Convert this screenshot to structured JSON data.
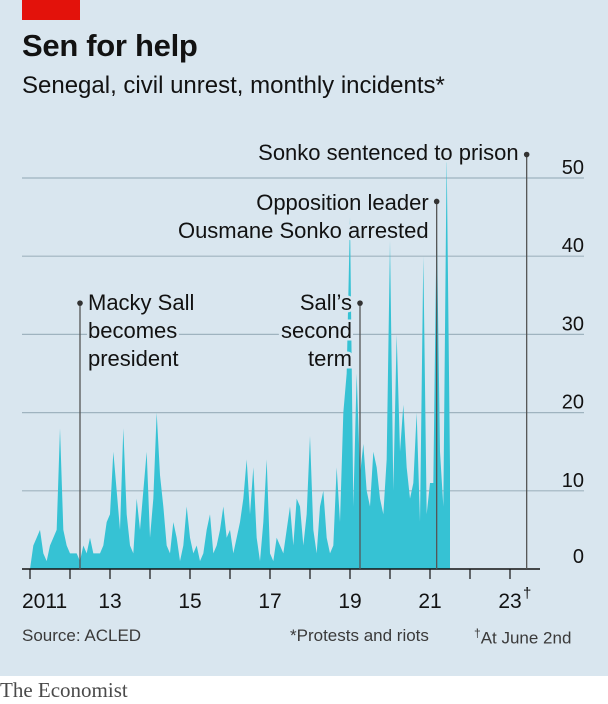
{
  "header": {
    "title": "Sen for help",
    "subtitle": "Senegal, civil unrest, monthly incidents*"
  },
  "footer": {
    "source": "Source: ACLED",
    "note_protests": "*Protests and riots",
    "note_date_mark": "†",
    "note_date": "At June 2nd",
    "brand": "The Economist"
  },
  "colors": {
    "panel": "#d9e6ef",
    "area": "#36c2d4",
    "accent": "#e3120b",
    "grid": "#9fb3bf",
    "text": "#121212"
  },
  "chart_data": {
    "type": "area",
    "title": "Sen for help",
    "subtitle": "Senegal, civil unrest, monthly incidents*",
    "x_unit": "month",
    "x_start": "2011-01",
    "x_end": "2023-05",
    "ylim": [
      0,
      50
    ],
    "y_ticks": [
      0,
      10,
      20,
      30,
      40,
      50
    ],
    "y_axis_position": "right",
    "grid": true,
    "x_tick_labels": [
      {
        "year": 2011,
        "label": "2011"
      },
      {
        "year": 2013,
        "label": "13"
      },
      {
        "year": 2015,
        "label": "15"
      },
      {
        "year": 2017,
        "label": "17"
      },
      {
        "year": 2019,
        "label": "19"
      },
      {
        "year": 2021,
        "label": "21"
      },
      {
        "year": 2023,
        "label": "23"
      }
    ],
    "x_last_tick_mark": "†",
    "series": [
      {
        "values": [
          0,
          3,
          4,
          5,
          2,
          1,
          3,
          4,
          5,
          18,
          5,
          3,
          2,
          2,
          2,
          1,
          3,
          2,
          4,
          2,
          2,
          2,
          3,
          6,
          7,
          15,
          10,
          5,
          18,
          7,
          3,
          2,
          9,
          5,
          10,
          15,
          4,
          9,
          20,
          12,
          8,
          3,
          2,
          6,
          4,
          1,
          3,
          8,
          4,
          2,
          3,
          1,
          2,
          5,
          7,
          2,
          3,
          5,
          8,
          4,
          5,
          2,
          4,
          6,
          9,
          14,
          7,
          13,
          4,
          1,
          6,
          14,
          2,
          1,
          4,
          3,
          2,
          5,
          8,
          3,
          9,
          8,
          3,
          7,
          17,
          5,
          2,
          8,
          10,
          4,
          2,
          3,
          13,
          6,
          20,
          25,
          45,
          8,
          25,
          12,
          16,
          10,
          8,
          15,
          13,
          9,
          7,
          14,
          42,
          10,
          30,
          15,
          21,
          13,
          9,
          11,
          20,
          6,
          40,
          7,
          11,
          11,
          45,
          15,
          8,
          53,
          13
        ]
      }
    ],
    "annotations": [
      {
        "label_lines": [
          "Macky Sall",
          "becomes",
          "president"
        ],
        "date": "2012-04",
        "value": 34
      },
      {
        "label_lines": [
          "Sall’s",
          "second",
          "term"
        ],
        "date": "2019-04",
        "value": 34
      },
      {
        "label_lines": [
          "Opposition leader",
          "Ousmane Sonko arrested"
        ],
        "date": "2021-03",
        "value": 47
      },
      {
        "label_lines": [
          "Sonko sentenced to prison"
        ],
        "date": "2023-06",
        "value": 53
      }
    ]
  }
}
